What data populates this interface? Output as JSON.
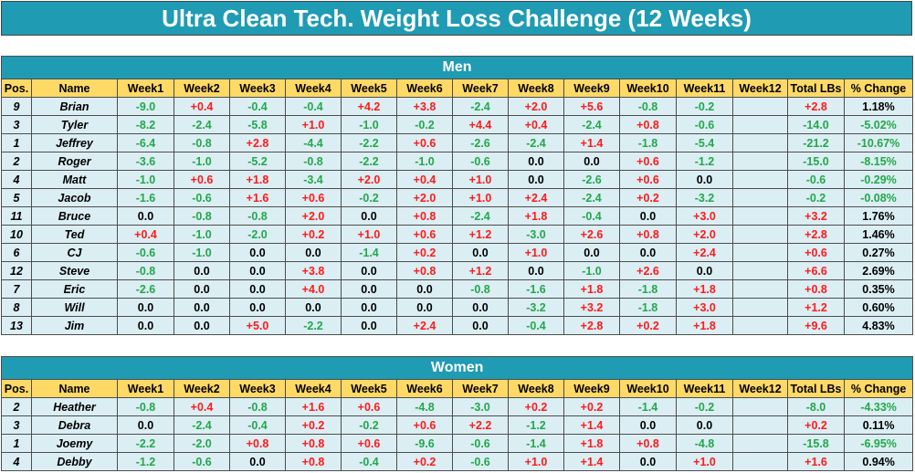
{
  "title": "Ultra Clean Tech. Weight Loss Challenge (12 Weeks)",
  "headers": [
    "Pos.",
    "Name",
    "Week1",
    "Week2",
    "Week3",
    "Week4",
    "Week5",
    "Week6",
    "Week7",
    "Week8",
    "Week9",
    "Week10",
    "Week11",
    "Week12",
    "Total LBs",
    "% Change"
  ],
  "colors": {
    "header_bar": "#1f9bb3",
    "column_header": "#ffd966",
    "row_bg": "#dbeef3",
    "loss": "#22a84a",
    "gain": "#ff1a1a"
  },
  "sections": [
    {
      "label": "Men",
      "rows": [
        {
          "pos": "9",
          "name": "Brian",
          "weeks": [
            "-9.0",
            "+0.4",
            "-0.4",
            "-0.4",
            "+4.2",
            "+3.8",
            "-2.4",
            "+2.0",
            "+5.6",
            "-0.8",
            "-0.2",
            ""
          ],
          "total": "+2.8",
          "pct": "1.18%"
        },
        {
          "pos": "3",
          "name": "Tyler",
          "weeks": [
            "-8.2",
            "-2.4",
            "-5.8",
            "+1.0",
            "-1.0",
            "-0.2",
            "+4.4",
            "+0.4",
            "-2.4",
            "+0.8",
            "-0.6",
            ""
          ],
          "total": "-14.0",
          "pct": "-5.02%"
        },
        {
          "pos": "1",
          "name": "Jeffrey",
          "weeks": [
            "-6.4",
            "-0.8",
            "+2.8",
            "-4.4",
            "-2.2",
            "+0.6",
            "-2.6",
            "-2.4",
            "+1.4",
            "-1.8",
            "-5.4",
            ""
          ],
          "total": "-21.2",
          "pct": "-10.67%"
        },
        {
          "pos": "2",
          "name": "Roger",
          "weeks": [
            "-3.6",
            "-1.0",
            "-5.2",
            "-0.8",
            "-2.2",
            "-1.0",
            "-0.6",
            "0.0",
            "0.0",
            "+0.6",
            "-1.2",
            ""
          ],
          "total": "-15.0",
          "pct": "-8.15%"
        },
        {
          "pos": "4",
          "name": "Matt",
          "weeks": [
            "-1.0",
            "+0.6",
            "+1.8",
            "-3.4",
            "+2.0",
            "+0.4",
            "+1.0",
            "0.0",
            "-2.6",
            "+0.6",
            "0.0",
            ""
          ],
          "total": "-0.6",
          "pct": "-0.29%"
        },
        {
          "pos": "5",
          "name": "Jacob",
          "weeks": [
            "-1.6",
            "-0.6",
            "+1.6",
            "+0.6",
            "-0.2",
            "+2.0",
            "+1.0",
            "+2.4",
            "-2.4",
            "+0.2",
            "-3.2",
            ""
          ],
          "total": "-0.2",
          "pct": "-0.08%"
        },
        {
          "pos": "11",
          "name": "Bruce",
          "weeks": [
            "0.0",
            "-0.8",
            "-0.8",
            "+2.0",
            "0.0",
            "+0.8",
            "-2.4",
            "+1.8",
            "-0.4",
            "0.0",
            "+3.0",
            ""
          ],
          "total": "+3.2",
          "pct": "1.76%"
        },
        {
          "pos": "10",
          "name": "Ted",
          "weeks": [
            "+0.4",
            "-1.0",
            "-2.0",
            "+0.2",
            "+1.0",
            "+0.6",
            "+1.2",
            "-3.0",
            "+2.6",
            "+0.8",
            "+2.0",
            ""
          ],
          "total": "+2.8",
          "pct": "1.46%"
        },
        {
          "pos": "6",
          "name": "CJ",
          "weeks": [
            "-0.6",
            "-1.0",
            "0.0",
            "0.0",
            "-1.4",
            "+0.2",
            "0.0",
            "+1.0",
            "0.0",
            "0.0",
            "+2.4",
            ""
          ],
          "total": "+0.6",
          "pct": "0.27%"
        },
        {
          "pos": "12",
          "name": "Steve",
          "weeks": [
            "-0.8",
            "0.0",
            "0.0",
            "+3.8",
            "0.0",
            "+0.8",
            "+1.2",
            "0.0",
            "-1.0",
            "+2.6",
            "0.0",
            ""
          ],
          "total": "+6.6",
          "pct": "2.69%"
        },
        {
          "pos": "7",
          "name": "Eric",
          "weeks": [
            "-2.6",
            "0.0",
            "0.0",
            "+4.0",
            "0.0",
            "0.0",
            "-0.8",
            "-1.6",
            "+1.8",
            "-1.8",
            "+1.8",
            ""
          ],
          "total": "+0.8",
          "pct": "0.35%"
        },
        {
          "pos": "8",
          "name": "Will",
          "weeks": [
            "0.0",
            "0.0",
            "0.0",
            "0.0",
            "0.0",
            "0.0",
            "0.0",
            "-3.2",
            "+3.2",
            "-1.8",
            "+3.0",
            ""
          ],
          "total": "+1.2",
          "pct": "0.60%"
        },
        {
          "pos": "13",
          "name": "Jim",
          "weeks": [
            "0.0",
            "0.0",
            "+5.0",
            "-2.2",
            "0.0",
            "+2.4",
            "0.0",
            "-0.4",
            "+2.8",
            "+0.2",
            "+1.8",
            ""
          ],
          "total": "+9.6",
          "pct": "4.83%"
        }
      ]
    },
    {
      "label": "Women",
      "rows": [
        {
          "pos": "2",
          "name": "Heather",
          "weeks": [
            "-0.8",
            "+0.4",
            "-0.8",
            "+1.6",
            "+0.6",
            "-4.8",
            "-3.0",
            "+0.2",
            "+0.2",
            "-1.4",
            "-0.2",
            ""
          ],
          "total": "-8.0",
          "pct": "-4.33%"
        },
        {
          "pos": "3",
          "name": "Debra",
          "weeks": [
            "0.0",
            "-2.4",
            "-0.4",
            "+0.2",
            "-0.2",
            "+0.6",
            "+2.2",
            "-1.2",
            "+1.4",
            "0.0",
            "0.0",
            ""
          ],
          "total": "+0.2",
          "pct": "0.11%"
        },
        {
          "pos": "1",
          "name": "Joemy",
          "weeks": [
            "-2.2",
            "-2.0",
            "+0.8",
            "+0.8",
            "+0.6",
            "-9.6",
            "-0.6",
            "-1.4",
            "+1.8",
            "+0.8",
            "-4.8",
            ""
          ],
          "total": "-15.8",
          "pct": "-6.95%"
        },
        {
          "pos": "4",
          "name": "Debby",
          "weeks": [
            "-1.2",
            "-0.6",
            "0.0",
            "+0.8",
            "-0.4",
            "+0.2",
            "-0.6",
            "+1.0",
            "+1.4",
            "0.0",
            "+1.0",
            ""
          ],
          "total": "+1.6",
          "pct": "0.94%"
        }
      ]
    }
  ]
}
